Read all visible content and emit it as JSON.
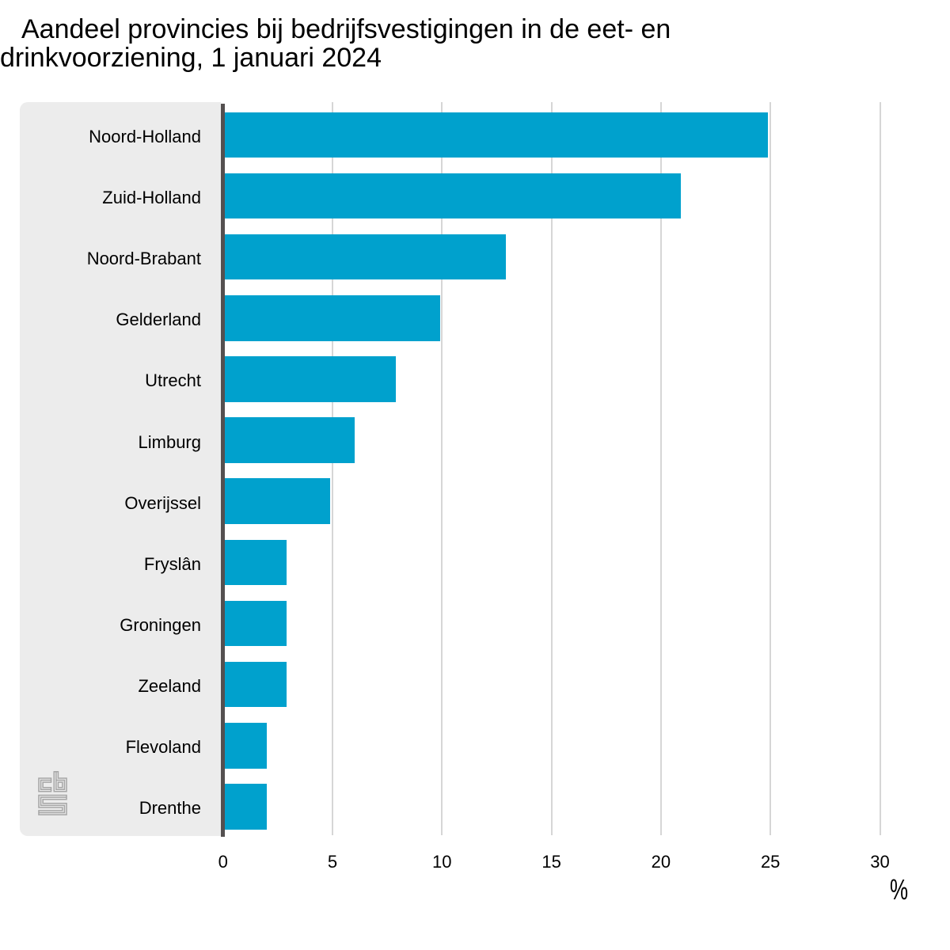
{
  "title": {
    "line1": "Aandeel provincies bij bedrijfsvestigingen in de eet- en",
    "line2": "drinkvoorziening, 1 januari 2024"
  },
  "chart_data": {
    "type": "bar",
    "orientation": "horizontal",
    "title": "Aandeel provincies bij bedrijfsvestigingen in de eet- en drinkvoorziening, 1 januari 2024",
    "categories": [
      "Noord-Holland",
      "Zuid-Holland",
      "Noord-Brabant",
      "Gelderland",
      "Utrecht",
      "Limburg",
      "Overijssel",
      "Fryslân",
      "Groningen",
      "Zeeland",
      "Flevoland",
      "Drenthe"
    ],
    "values": [
      24.9,
      20.9,
      12.9,
      9.9,
      7.9,
      6.0,
      4.9,
      2.9,
      2.9,
      2.9,
      2.0,
      2.0
    ],
    "xlabel": "%",
    "xlim": [
      0,
      31.3
    ],
    "xticks": [
      0,
      5,
      10,
      15,
      20,
      25,
      30
    ],
    "grid": true,
    "legend": false,
    "bar_color": "#00a1cd",
    "panel_color": "#ececec",
    "axis_line_color": "#545050",
    "gridline_color": "#d6d6d6",
    "logo_color": "#a6a6a6"
  },
  "branding": {
    "logo": "cbs-logo"
  }
}
